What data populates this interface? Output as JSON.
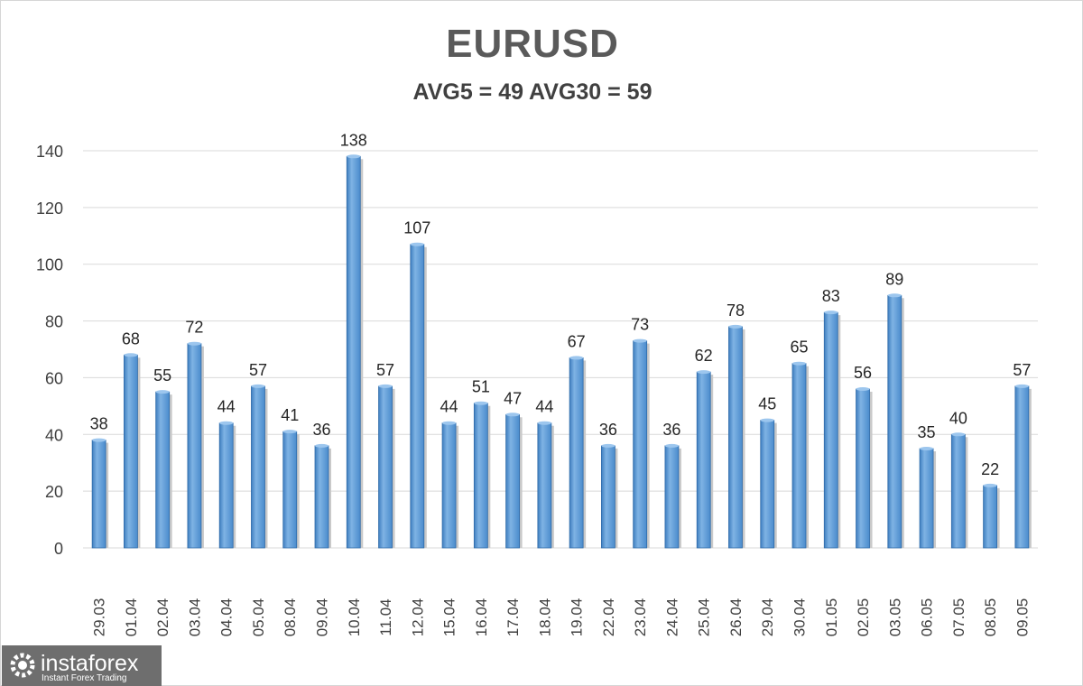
{
  "chart_data": {
    "type": "bar",
    "title": "EURUSD",
    "subtitle": "AVG5 = 49 AVG30 = 59",
    "categories": [
      "29.03",
      "01.04",
      "02.04",
      "03.04",
      "04.04",
      "05.04",
      "08.04",
      "09.04",
      "10.04",
      "11.04",
      "12.04",
      "15.04",
      "16.04",
      "17.04",
      "18.04",
      "19.04",
      "22.04",
      "23.04",
      "24.04",
      "25.04",
      "26.04",
      "29.04",
      "30.04",
      "01.05",
      "02.05",
      "03.05",
      "06.05",
      "07.05",
      "08.05",
      "09.05"
    ],
    "values": [
      38,
      68,
      55,
      72,
      44,
      57,
      41,
      36,
      138,
      57,
      107,
      44,
      51,
      47,
      44,
      67,
      36,
      73,
      36,
      62,
      78,
      45,
      65,
      83,
      56,
      89,
      35,
      40,
      22,
      57
    ],
    "ylim": [
      0,
      140
    ],
    "yticks": [
      0,
      20,
      40,
      60,
      80,
      100,
      120,
      140
    ],
    "grid": true,
    "data_labels": true,
    "bar_color": "#5b9bd5",
    "xlabel": "",
    "ylabel": ""
  },
  "watermark": {
    "name": "instaforex",
    "tagline": "Instant Forex Trading"
  }
}
